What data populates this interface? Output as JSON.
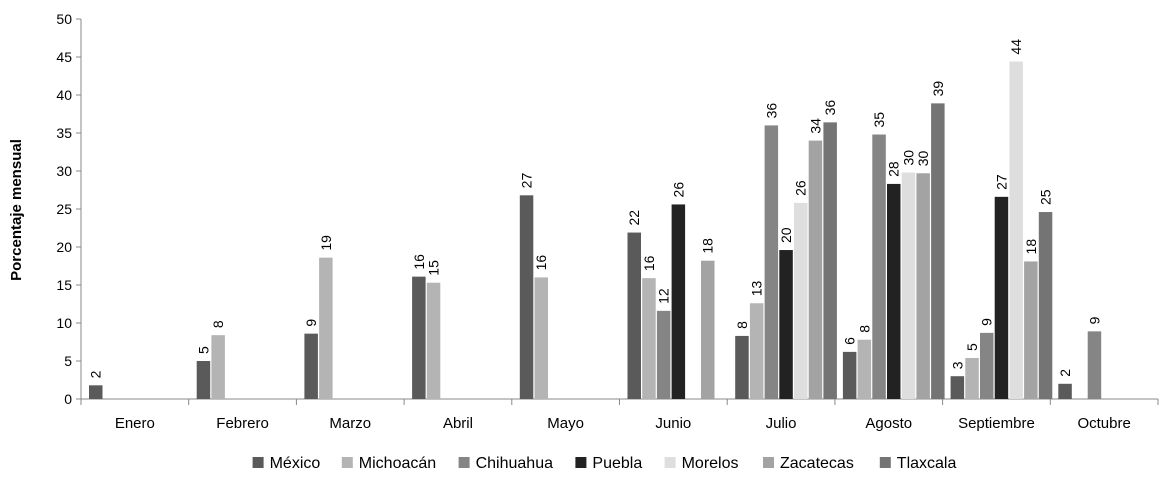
{
  "chart_data": {
    "type": "bar",
    "title": "",
    "xlabel": "",
    "ylabel": "Porcentaje mensual",
    "ylim": [
      0,
      50
    ],
    "yticks": [
      0,
      5,
      10,
      15,
      20,
      25,
      30,
      35,
      40,
      45,
      50
    ],
    "categories": [
      "Enero",
      "Febrero",
      "Marzo",
      "Abril",
      "Mayo",
      "Junio",
      "Julio",
      "Agosto",
      "Septiembre",
      "Octubre"
    ],
    "legend_position": "bottom",
    "series": [
      {
        "name": "México",
        "color": "#5a5a5a",
        "values": [
          1.8,
          5.0,
          8.6,
          16.1,
          26.8,
          21.9,
          8.3,
          6.2,
          3.0,
          2.0
        ],
        "labels": [
          "2",
          "5",
          "9",
          "16",
          "27",
          "22",
          "8",
          "6",
          "3",
          "2"
        ]
      },
      {
        "name": "Michoacán",
        "color": "#b4b4b4",
        "values": [
          null,
          8.4,
          18.6,
          15.3,
          16.0,
          15.9,
          12.6,
          7.8,
          5.4,
          null
        ],
        "labels": [
          "",
          "8",
          "19",
          "15",
          "16",
          "16",
          "13",
          "8",
          "5",
          ""
        ]
      },
      {
        "name": "Chihuahua",
        "color": "#858585",
        "values": [
          null,
          null,
          null,
          null,
          null,
          11.6,
          36.0,
          34.8,
          8.7,
          8.9
        ],
        "labels": [
          "",
          "",
          "",
          "",
          "",
          "12",
          "36",
          "35",
          "9",
          "9"
        ]
      },
      {
        "name": "Puebla",
        "color": "#222222",
        "values": [
          null,
          null,
          null,
          null,
          null,
          25.6,
          19.6,
          28.3,
          26.6,
          null
        ],
        "labels": [
          "",
          "",
          "",
          "",
          "",
          "26",
          "20",
          "28",
          "27",
          ""
        ]
      },
      {
        "name": "Morelos",
        "color": "#dedede",
        "values": [
          null,
          null,
          null,
          null,
          null,
          null,
          25.8,
          29.8,
          44.4,
          null
        ],
        "labels": [
          "",
          "",
          "",
          "",
          "",
          "",
          "26",
          "30",
          "44",
          ""
        ]
      },
      {
        "name": "Zacatecas",
        "color": "#a3a3a3",
        "values": [
          null,
          null,
          null,
          null,
          null,
          18.2,
          34.0,
          29.7,
          18.1,
          null
        ],
        "labels": [
          "",
          "",
          "",
          "",
          "",
          "18",
          "34",
          "30",
          "18",
          ""
        ]
      },
      {
        "name": "Tlaxcala",
        "color": "#747474",
        "values": [
          null,
          null,
          null,
          null,
          null,
          null,
          36.4,
          38.9,
          24.6,
          null
        ],
        "labels": [
          "",
          "",
          "",
          "",
          "",
          "",
          "36",
          "39",
          "25",
          ""
        ]
      }
    ]
  }
}
